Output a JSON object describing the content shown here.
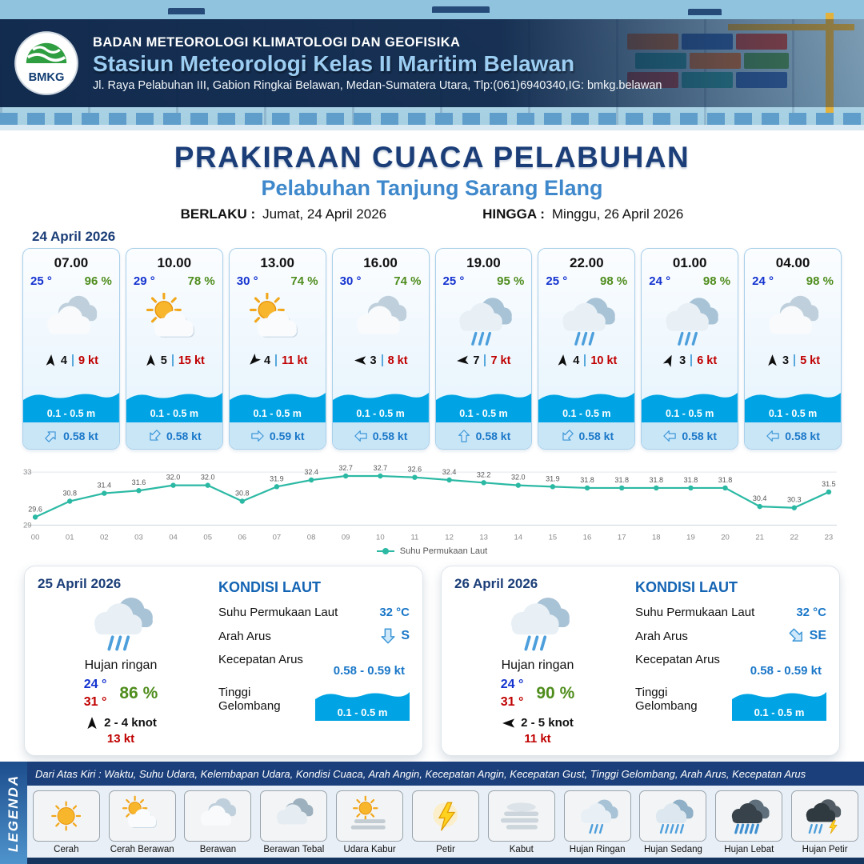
{
  "header": {
    "agency": "BADAN METEOROLOGI KLIMATOLOGI DAN GEOFISIKA",
    "station": "Stasiun Meteorologi Kelas II Maritim Belawan",
    "address": "Jl. Raya Pelabuhan III, Gabion Ringkai Belawan, Medan-Sumatera Utara, Tlp:(061)6940340,IG: bmkg.belawan",
    "logo_text": "BMKG"
  },
  "title": {
    "main": "PRAKIRAAN CUACA PELABUHAN",
    "port": "Pelabuhan Tanjung Sarang Elang",
    "valid_from_label": "BERLAKU :",
    "valid_from": "Jumat, 24 April 2026",
    "valid_to_label": "HINGGA :",
    "valid_to": "Minggu, 26 April 2026"
  },
  "forecast": {
    "date": "24 April 2026",
    "cards": [
      {
        "time": "07.00",
        "temp": "25 °",
        "rh": "96 %",
        "icon": "berawan",
        "wind_deg": 5,
        "wind_speed": "4",
        "gust": "9 kt",
        "wave": "0.1 - 0.5 m",
        "current_deg": 45,
        "current": "0.58 kt"
      },
      {
        "time": "10.00",
        "temp": "29 °",
        "rh": "78 %",
        "icon": "cerah-berawan",
        "wind_deg": 0,
        "wind_speed": "5",
        "gust": "15 kt",
        "wave": "0.1 - 0.5 m",
        "current_deg": 225,
        "current": "0.58 kt"
      },
      {
        "time": "13.00",
        "temp": "30 °",
        "rh": "74 %",
        "icon": "cerah-berawan",
        "wind_deg": 225,
        "wind_speed": "4",
        "gust": "11 kt",
        "wave": "0.1 - 0.5 m",
        "current_deg": 90,
        "current": "0.59 kt"
      },
      {
        "time": "16.00",
        "temp": "30 °",
        "rh": "74 %",
        "icon": "berawan",
        "wind_deg": 270,
        "wind_speed": "3",
        "gust": "8 kt",
        "wave": "0.1 - 0.5 m",
        "current_deg": 270,
        "current": "0.58 kt"
      },
      {
        "time": "19.00",
        "temp": "25 °",
        "rh": "95 %",
        "icon": "hujan-ringan",
        "wind_deg": 265,
        "wind_speed": "7",
        "gust": "7 kt",
        "wave": "0.1 - 0.5 m",
        "current_deg": 0,
        "current": "0.58 kt"
      },
      {
        "time": "22.00",
        "temp": "25 °",
        "rh": "98 %",
        "icon": "hujan-ringan",
        "wind_deg": 5,
        "wind_speed": "4",
        "gust": "10 kt",
        "wave": "0.1 - 0.5 m",
        "current_deg": 225,
        "current": "0.58 kt"
      },
      {
        "time": "01.00",
        "temp": "24 °",
        "rh": "98 %",
        "icon": "hujan-ringan",
        "wind_deg": 25,
        "wind_speed": "3",
        "gust": "6 kt",
        "wave": "0.1 - 0.5 m",
        "current_deg": 270,
        "current": "0.58 kt"
      },
      {
        "time": "04.00",
        "temp": "24 °",
        "rh": "98 %",
        "icon": "berawan",
        "wind_deg": 0,
        "wind_speed": "3",
        "gust": "5 kt",
        "wave": "0.1 - 0.5 m",
        "current_deg": 270,
        "current": "0.58 kt"
      }
    ]
  },
  "chart_data": {
    "type": "line",
    "x": [
      "00",
      "01",
      "02",
      "03",
      "04",
      "05",
      "06",
      "07",
      "08",
      "09",
      "10",
      "11",
      "12",
      "13",
      "14",
      "15",
      "16",
      "17",
      "18",
      "19",
      "20",
      "21",
      "22",
      "23"
    ],
    "values": [
      29.6,
      30.8,
      31.4,
      31.6,
      32.0,
      32.0,
      30.8,
      31.9,
      32.4,
      32.7,
      32.7,
      32.6,
      32.4,
      32.2,
      32.0,
      31.9,
      31.8,
      31.8,
      31.8,
      31.8,
      31.8,
      30.4,
      30.3,
      31.5
    ],
    "ylim": [
      29,
      33
    ],
    "yticks": [
      29,
      33
    ],
    "legend": "Suhu Permukaan Laut",
    "line_color": "#2bb9a4",
    "grid": "horizontal-ends"
  },
  "daily": [
    {
      "date": "25 April 2026",
      "icon": "hujan-ringan",
      "condition": "Hujan ringan",
      "tmin": "24 °",
      "tmax": "31 °",
      "rh": "86 %",
      "wind_deg": 0,
      "wind": "2 - 4 knot",
      "gust": "13 kt",
      "sea_heading": "KONDISI LAUT",
      "sst_label": "Suhu Permukaan Laut",
      "sst": "32 °C",
      "current_dir_label": "Arah Arus",
      "current_dir": "S",
      "current_dir_deg": 180,
      "current_speed_label": "Kecepatan Arus",
      "current_speed": "0.58 - 0.59 kt",
      "wave_label": "Tinggi Gelombang",
      "wave": "0.1 - 0.5 m"
    },
    {
      "date": "26 April 2026",
      "icon": "hujan-ringan",
      "condition": "Hujan ringan",
      "tmin": "24 °",
      "tmax": "31 °",
      "rh": "90 %",
      "wind_deg": 270,
      "wind": "2 - 5 knot",
      "gust": "11 kt",
      "sea_heading": "KONDISI LAUT",
      "sst_label": "Suhu Permukaan Laut",
      "sst": "32 °C",
      "current_dir_label": "Arah Arus",
      "current_dir": "SE",
      "current_dir_deg": 135,
      "current_speed_label": "Kecepatan Arus",
      "current_speed": "0.58 - 0.59 kt",
      "wave_label": "Tinggi Gelombang",
      "wave": "0.1 - 0.5 m"
    }
  ],
  "legend": {
    "title": "LEGENDA",
    "note": "Dari Atas Kiri : Waktu, Suhu Udara, Kelembapan Udara, Kondisi Cuaca, Arah Angin, Kecepatan Angin, Kecepatan Gust, Tinggi Gelombang, Arah Arus, Kecepatan Arus",
    "items": [
      {
        "label": "Cerah",
        "icon": "cerah"
      },
      {
        "label": "Cerah Berawan",
        "icon": "cerah-berawan"
      },
      {
        "label": "Berawan",
        "icon": "berawan"
      },
      {
        "label": "Berawan Tebal",
        "icon": "berawan-tebal"
      },
      {
        "label": "Udara Kabur",
        "icon": "udara-kabur"
      },
      {
        "label": "Petir",
        "icon": "petir"
      },
      {
        "label": "Kabut",
        "icon": "kabut"
      },
      {
        "label": "Hujan Ringan",
        "icon": "hujan-ringan"
      },
      {
        "label": "Hujan Sedang",
        "icon": "hujan-sedang"
      },
      {
        "label": "Hujan Lebat",
        "icon": "hujan-lebat"
      },
      {
        "label": "Hujan Petir",
        "icon": "hujan-petir"
      }
    ]
  },
  "colors": {
    "accent_dark_blue": "#1b3e78",
    "accent_blue": "#3e88cb",
    "wave_blue": "#00a4e4",
    "temp_blue": "#1433cf",
    "humidity_green": "#4f8d1d",
    "alert_red": "#c00000",
    "chart_teal": "#2bb9a4"
  }
}
